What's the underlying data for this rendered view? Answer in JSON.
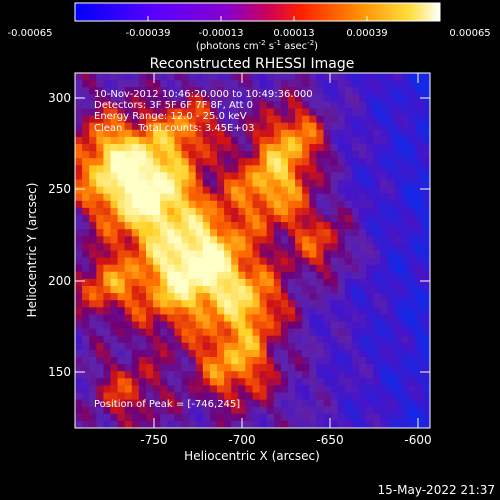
{
  "colorbar": {
    "ticks": [
      "-0.00065",
      "-0.00039",
      "-0.00013",
      "0.00013",
      "0.00039",
      "0.00065"
    ],
    "units_main": "(photons cm",
    "units_exp1": "-2",
    "units_mid": " s",
    "units_exp2": "-1",
    "units_tail": " asec",
    "units_exp3": "-2",
    "units_close": ")"
  },
  "title": "Reconstructed RHESSI Image",
  "info": {
    "line1": "10-Nov-2012 10:46:20.000 to 10:49:36.000",
    "line2": "Detectors: 3F 5F 6F 7F 8F, Att 0",
    "line3": "Energy Range: 12.0 - 25.0 keV",
    "line4": "Clean     Total counts: 3.45E+03",
    "peak": "Position of Peak = [-746,245]"
  },
  "axes": {
    "xlabel": "Heliocentric X (arcsec)",
    "ylabel": "Heliocentric Y (arcsec)",
    "xticks": [
      "-750",
      "-700",
      "-650",
      "-600"
    ],
    "yticks": [
      "300",
      "250",
      "200",
      "150"
    ],
    "xrange": [
      -790,
      -590
    ],
    "yrange": [
      120,
      320
    ]
  },
  "timestamp": "15-May-2022 21:37",
  "colors": {
    "background": "#000000",
    "text": "#ffffff"
  }
}
